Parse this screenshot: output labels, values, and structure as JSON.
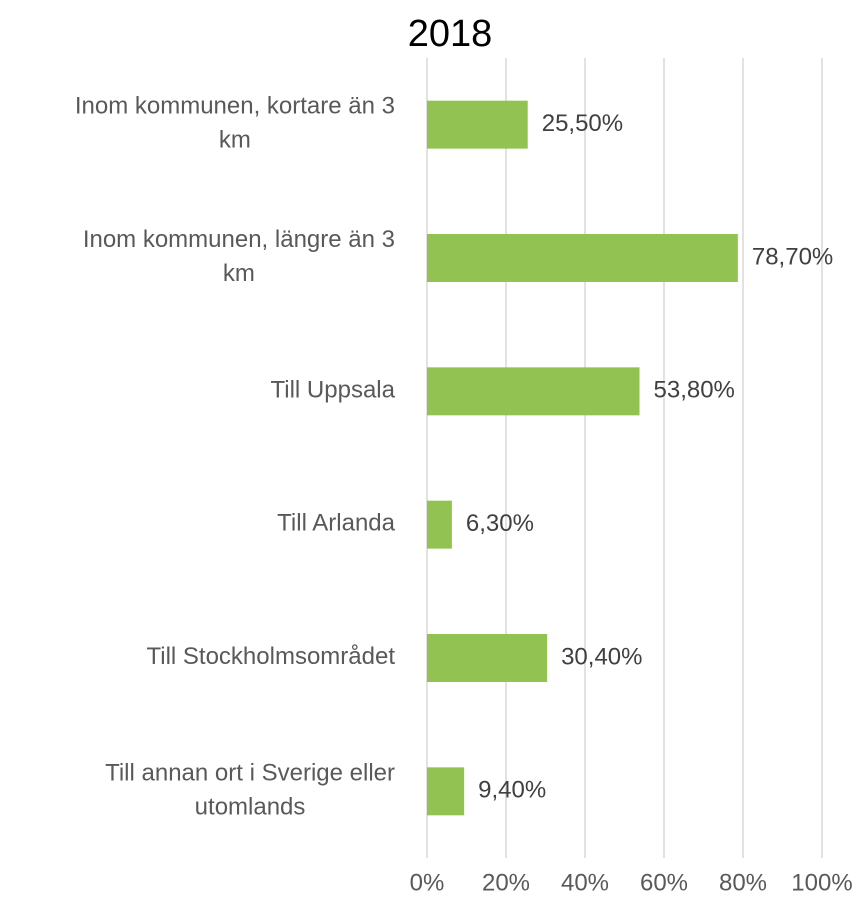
{
  "chart_data": {
    "type": "bar",
    "orientation": "horizontal",
    "title": "2018",
    "categories": [
      "Inom kommunen, kortare än 3 km",
      "Inom kommunen, längre än 3 km",
      "Till Uppsala",
      "Till Arlanda",
      "Till Stockholmsområdet",
      "Till annan ort i Sverige eller utomlands"
    ],
    "values": [
      25.5,
      78.7,
      53.8,
      6.3,
      30.4,
      9.4
    ],
    "value_labels": [
      "25,50%",
      "78,70%",
      "53,80%",
      "6,30%",
      "30,40%",
      "9,40%"
    ],
    "color": "#92c352",
    "xlim": [
      0,
      100
    ],
    "xticks": [
      {
        "value": 0,
        "label": "0%"
      },
      {
        "value": 20,
        "label": "20%"
      },
      {
        "value": 40,
        "label": "40%"
      },
      {
        "value": 60,
        "label": "60%"
      },
      {
        "value": 80,
        "label": "80%"
      },
      {
        "value": 100,
        "label": "100%"
      }
    ],
    "grid": true
  }
}
